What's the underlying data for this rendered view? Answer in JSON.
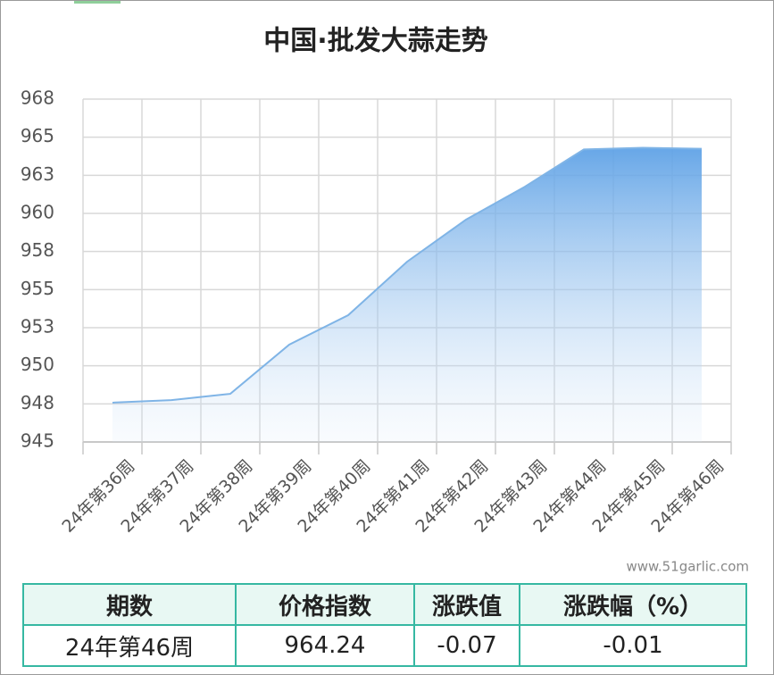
{
  "chart_data": {
    "type": "line",
    "title": "中国·批发大蒜走势",
    "categories": [
      "24年第36周",
      "24年第37周",
      "24年第38周",
      "24年第39周",
      "24年第40周",
      "24年第41周",
      "24年第42周",
      "24年第43周",
      "24年第44周",
      "24年第45周",
      "24年第46周"
    ],
    "series": [
      {
        "color": "#7fb4e6",
        "values": [
          947.58,
          947.75,
          948.16,
          951.39,
          953.32,
          956.83,
          959.59,
          961.75,
          964.2,
          964.31,
          964.24
        ]
      }
    ],
    "ylim": [
      945,
      967.5
    ],
    "yticks": [
      945,
      {
        "value": 947.5,
        "label": "948"
      },
      950,
      {
        "value": 952.5,
        "label": "953"
      },
      955,
      {
        "value": 957.5,
        "label": "958"
      },
      960,
      {
        "value": 962.5,
        "label": "963"
      },
      965,
      {
        "value": 967.5,
        "label": "968"
      }
    ],
    "grid": true,
    "watermark": "www.51garlic.com"
  },
  "table": {
    "header": [
      "期数",
      "价格指数",
      "涨跌值",
      "涨跌幅（%）"
    ],
    "rows": [
      [
        "24年第46周",
        "964.24",
        "-0.07",
        "-0.01"
      ]
    ]
  }
}
